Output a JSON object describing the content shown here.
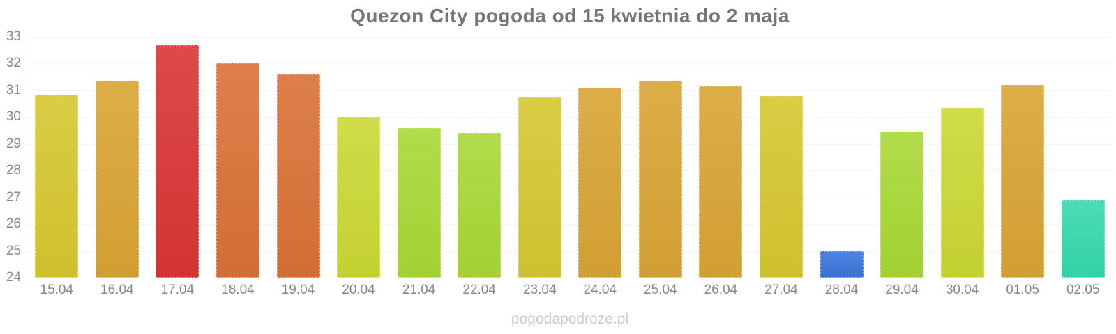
{
  "chart_data": {
    "type": "bar",
    "title": "Quezon City pogoda od 15 kwietnia do 2 maja",
    "categories": [
      "15.04",
      "16.04",
      "17.04",
      "18.04",
      "19.04",
      "20.04",
      "21.04",
      "22.04",
      "23.04",
      "24.04",
      "25.04",
      "26.04",
      "27.04",
      "28.04",
      "29.04",
      "30.04",
      "01.05",
      "02.05"
    ],
    "values": [
      30.85,
      31.35,
      32.7,
      32.0,
      31.6,
      30.0,
      29.6,
      29.4,
      30.75,
      31.1,
      31.35,
      31.15,
      30.8,
      25.0,
      29.45,
      30.35,
      31.2,
      26.9
    ],
    "bar_colors": [
      "#d6c72f",
      "#d9a433",
      "#d93534",
      "#da7136",
      "#da7136",
      "#cbd834",
      "#a9d835",
      "#a9d835",
      "#d5c832",
      "#d9a434",
      "#d9a434",
      "#d9a434",
      "#d6c72f",
      "#3b76db",
      "#a9d835",
      "#cbd834",
      "#d9a434",
      "#36d9ad"
    ],
    "xlabel": "",
    "ylabel": "",
    "ylim": [
      24,
      33
    ],
    "yticks": [
      24,
      25,
      26,
      27,
      28,
      29,
      30,
      31,
      32,
      33
    ],
    "grid": true,
    "legend": false
  },
  "watermark": "pogodapodroze.pl",
  "colors": {
    "background": "#ffffff",
    "title": "#757575",
    "axis_labels": "#888888",
    "axis_line": "#cccccc",
    "gridline": "#ebebeb",
    "watermark": "#c9cbcb"
  }
}
